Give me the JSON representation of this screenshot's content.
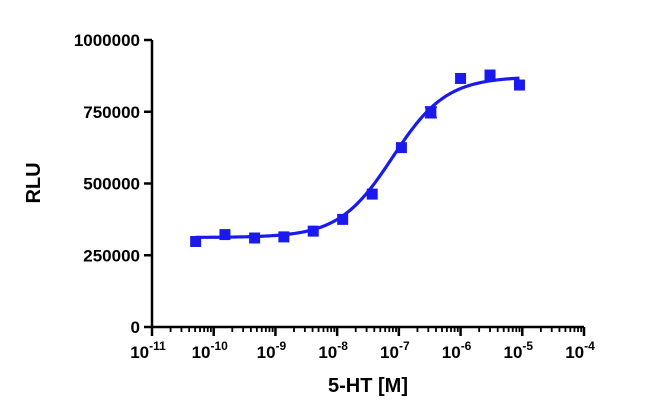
{
  "chart_data": {
    "type": "scatter",
    "title": "",
    "xlabel": "5-HT [M]",
    "ylabel": "RLU",
    "x_scale": "log10",
    "xlim": [
      1e-11,
      0.0001
    ],
    "ylim": [
      0,
      1000000
    ],
    "x_ticks": [
      {
        "value": 1e-11,
        "base": "10",
        "exp": "-11"
      },
      {
        "value": 1e-10,
        "base": "10",
        "exp": "-10"
      },
      {
        "value": 1e-09,
        "base": "10",
        "exp": "-9"
      },
      {
        "value": 1e-08,
        "base": "10",
        "exp": "-8"
      },
      {
        "value": 1e-07,
        "base": "10",
        "exp": "-7"
      },
      {
        "value": 1e-06,
        "base": "10",
        "exp": "-6"
      },
      {
        "value": 1e-05,
        "base": "10",
        "exp": "-5"
      },
      {
        "value": 0.0001,
        "base": "10",
        "exp": "-4"
      }
    ],
    "y_ticks": [
      {
        "value": 0,
        "label": "0"
      },
      {
        "value": 250000,
        "label": "250000"
      },
      {
        "value": 500000,
        "label": "500000"
      },
      {
        "value": 750000,
        "label": "750000"
      },
      {
        "value": 1000000,
        "label": "1000000"
      }
    ],
    "grid": false,
    "color": "#1a1aee",
    "series": [
      {
        "marker": "square",
        "x": [
          5.1e-11,
          1.52e-10,
          4.6e-10,
          1.37e-09,
          4.1e-09,
          1.23e-08,
          3.7e-08,
          1.1e-07,
          3.3e-07,
          1e-06,
          3e-06,
          9e-06
        ],
        "y": [
          298000,
          322000,
          310000,
          314000,
          334000,
          375000,
          463000,
          625000,
          748000,
          866000,
          878000,
          843000
        ],
        "error": [
          0,
          0,
          0,
          0,
          0,
          0,
          0,
          0,
          18000,
          0,
          0,
          0
        ]
      }
    ],
    "fit": {
      "type": "sigmoid",
      "bottom": 312000,
      "top": 872000,
      "log_ec50": -7.1,
      "hill": 1.0,
      "x_range": [
        5.1e-11,
        9e-06
      ]
    }
  }
}
